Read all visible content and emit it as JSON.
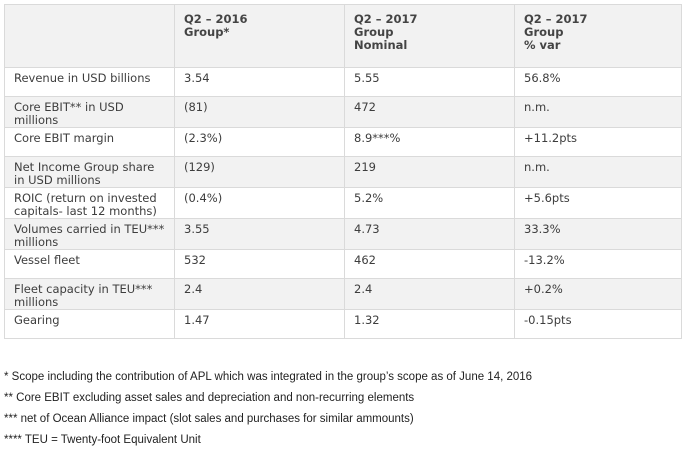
{
  "table": {
    "headers": [
      "",
      "Q2 – 2016\nGroup*",
      "Q2 – 2017\nGroup\nNominal",
      "Q2 – 2017\nGroup\n% var"
    ],
    "rows": [
      [
        "Revenue in USD billions",
        "3.54",
        "5.55",
        "56.8%"
      ],
      [
        "Core EBIT** in USD millions",
        "(81)",
        "472",
        "n.m."
      ],
      [
        "Core EBIT margin",
        "(2.3%)",
        "8.9***%",
        "+11.2pts"
      ],
      [
        "Net Income Group share in USD millions",
        "(129)",
        "219",
        "n.m."
      ],
      [
        "ROIC (return on invested capitals- last 12 months)",
        "(0.4%)",
        "5.2%",
        "+5.6pts"
      ],
      [
        "Volumes carried in TEU*** millions",
        "3.55",
        "4.73",
        "33.3%"
      ],
      [
        "Vessel fleet",
        "532",
        "462",
        "-13.2%"
      ],
      [
        "Fleet capacity in TEU*** millions",
        "2.4",
        "2.4",
        "+0.2%"
      ],
      [
        "Gearing",
        "1.47",
        "1.32",
        "-0.15pts"
      ]
    ]
  },
  "footnotes": [
    "* Scope including the contribution of APL which was integrated in the group’s scope as of June 14, 2016",
    "** Core EBIT excluding asset sales and depreciation and non-recurring elements",
    "*** net of Ocean Alliance impact (slot sales and purchases for similar ammounts)",
    "**** TEU = Twenty-foot Equivalent Unit"
  ]
}
